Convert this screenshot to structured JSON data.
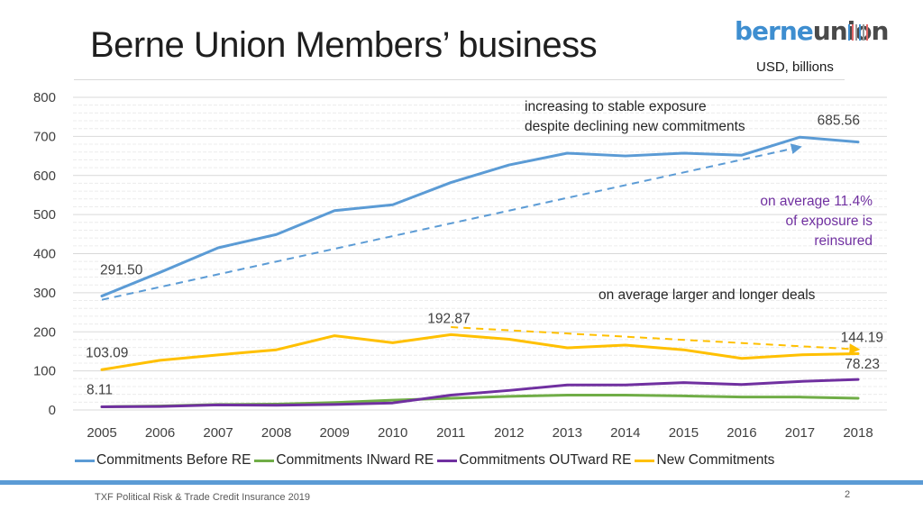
{
  "slide": {
    "title": "Berne Union Members’ business",
    "logo_part1": "berne",
    "logo_part2": "union",
    "unit": "USD, billions",
    "footer": "TXF Political Risk & Trade Credit Insurance 2019",
    "page_number": "2"
  },
  "annotations": {
    "exposure_line1": "increasing to stable exposure",
    "exposure_line2": "despite declining new commitments",
    "reinsured_line1": "on average 11.4%",
    "reinsured_line2": "of exposure is",
    "reinsured_line3": "reinsured",
    "deals": "on average larger and longer deals"
  },
  "colors": {
    "before_re": "#5b9bd5",
    "inward_re": "#70ad47",
    "outward_re": "#7030a0",
    "new_commitments": "#ffc000",
    "logo_blue": "#3e8ed0"
  },
  "chart_data": {
    "type": "line",
    "x": [
      2005,
      2006,
      2007,
      2008,
      2009,
      2010,
      2011,
      2012,
      2013,
      2014,
      2015,
      2016,
      2017,
      2018
    ],
    "ylim": [
      0,
      800
    ],
    "yticks": [
      0,
      100,
      200,
      300,
      400,
      500,
      600,
      700,
      800
    ],
    "grid": true,
    "legend_position": "bottom",
    "series": [
      {
        "name": "Commitments Before RE",
        "color": "#5b9bd5",
        "values": [
          291.5,
          352,
          415,
          449,
          510,
          525,
          582,
          627,
          657,
          650,
          657,
          652,
          698,
          685.56
        ]
      },
      {
        "name": "Commitments INward RE",
        "color": "#70ad47",
        "values": [
          8.11,
          10,
          14,
          15,
          19,
          25,
          30,
          35,
          38,
          38,
          36,
          33,
          33,
          30
        ]
      },
      {
        "name": "Commitments OUTward RE",
        "color": "#7030a0",
        "values": [
          8.11,
          9,
          13,
          12,
          14,
          18,
          38,
          50,
          64,
          64,
          70,
          65,
          73,
          78.23
        ]
      },
      {
        "name": "New Commitments",
        "color": "#ffc000",
        "values": [
          103.09,
          127,
          141,
          154,
          190,
          172,
          192.87,
          181,
          159,
          166,
          154,
          132,
          141,
          144.19
        ]
      }
    ],
    "data_labels": [
      {
        "text": "291.50",
        "x": 2005,
        "y": 291.5
      },
      {
        "text": "685.56",
        "x": 2018,
        "y": 685.56
      },
      {
        "text": "103.09",
        "x": 2005,
        "y": 103.09
      },
      {
        "text": "192.87",
        "x": 2011,
        "y": 192.87
      },
      {
        "text": "144.19",
        "x": 2018,
        "y": 144.19
      },
      {
        "text": "8.11",
        "x": 2005,
        "y": 8.11
      },
      {
        "text": "78.23",
        "x": 2018,
        "y": 78.23
      }
    ],
    "trend_lines": [
      {
        "series": "Commitments Before RE",
        "from": [
          2005,
          282
        ],
        "to": [
          2017,
          673
        ]
      },
      {
        "series": "New Commitments",
        "from": [
          2011,
          212
        ],
        "to": [
          2018,
          155
        ]
      }
    ]
  }
}
